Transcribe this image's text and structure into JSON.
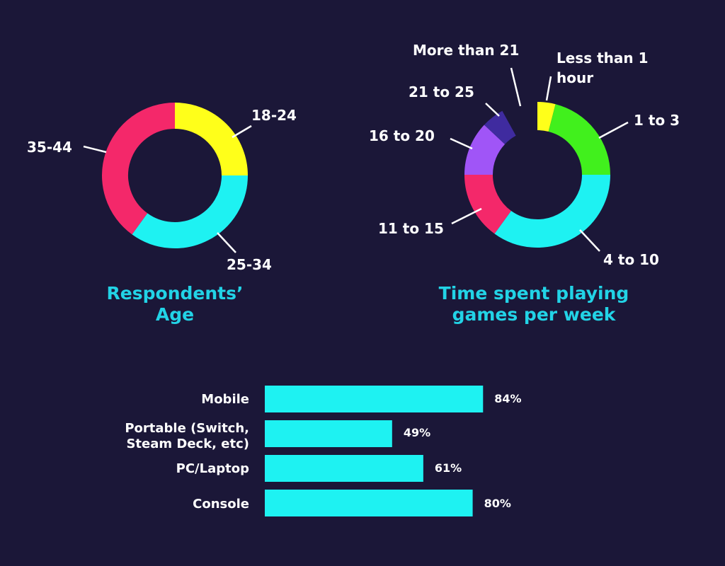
{
  "chart_data": [
    {
      "type": "pie",
      "title": "Respondents’ Age",
      "title_lines": [
        "Respondents’",
        "Age"
      ],
      "donut": true,
      "slices": [
        {
          "label": "18-24",
          "value": 25,
          "color": "#ffff1a"
        },
        {
          "label": "25-34",
          "value": 35,
          "color": "#1ef2f2"
        },
        {
          "label": "35-44",
          "value": 40,
          "color": "#f4286a"
        }
      ]
    },
    {
      "type": "pie",
      "title": "Time spent playing games per week",
      "title_lines": [
        "Time spent playing",
        "games per week"
      ],
      "donut": true,
      "slices": [
        {
          "label": "Less than 1 hour",
          "label_lines": [
            "Less than 1",
            "hour"
          ],
          "value": 4,
          "color": "#ffff1a"
        },
        {
          "label": "1 to 3",
          "value": 21,
          "color": "#41f01d"
        },
        {
          "label": "4 to 10",
          "value": 35,
          "color": "#1ef2f2"
        },
        {
          "label": "11 to 15",
          "value": 15,
          "color": "#f4286a"
        },
        {
          "label": "16 to 20",
          "value": 12,
          "color": "#a055f7"
        },
        {
          "label": "21 to 25",
          "value": 5,
          "color": "#3f2b9f"
        },
        {
          "label": "More than 21",
          "value": 0,
          "color": "#1b1738"
        }
      ]
    },
    {
      "type": "bar",
      "orientation": "horizontal",
      "categories": [
        "Mobile",
        "Portable (Switch, Steam Deck, etc)",
        "PC/Laptop",
        "Console"
      ],
      "category_lines": [
        [
          "Mobile"
        ],
        [
          "Portable (Switch,",
          "Steam Deck, etc)"
        ],
        [
          "PC/Laptop"
        ],
        [
          "Console"
        ]
      ],
      "values": [
        84,
        49,
        61,
        80
      ],
      "value_labels": [
        "84%",
        "49%",
        "61%",
        "80%"
      ],
      "xlim": [
        0,
        100
      ],
      "color": "#1ef2f2"
    }
  ]
}
